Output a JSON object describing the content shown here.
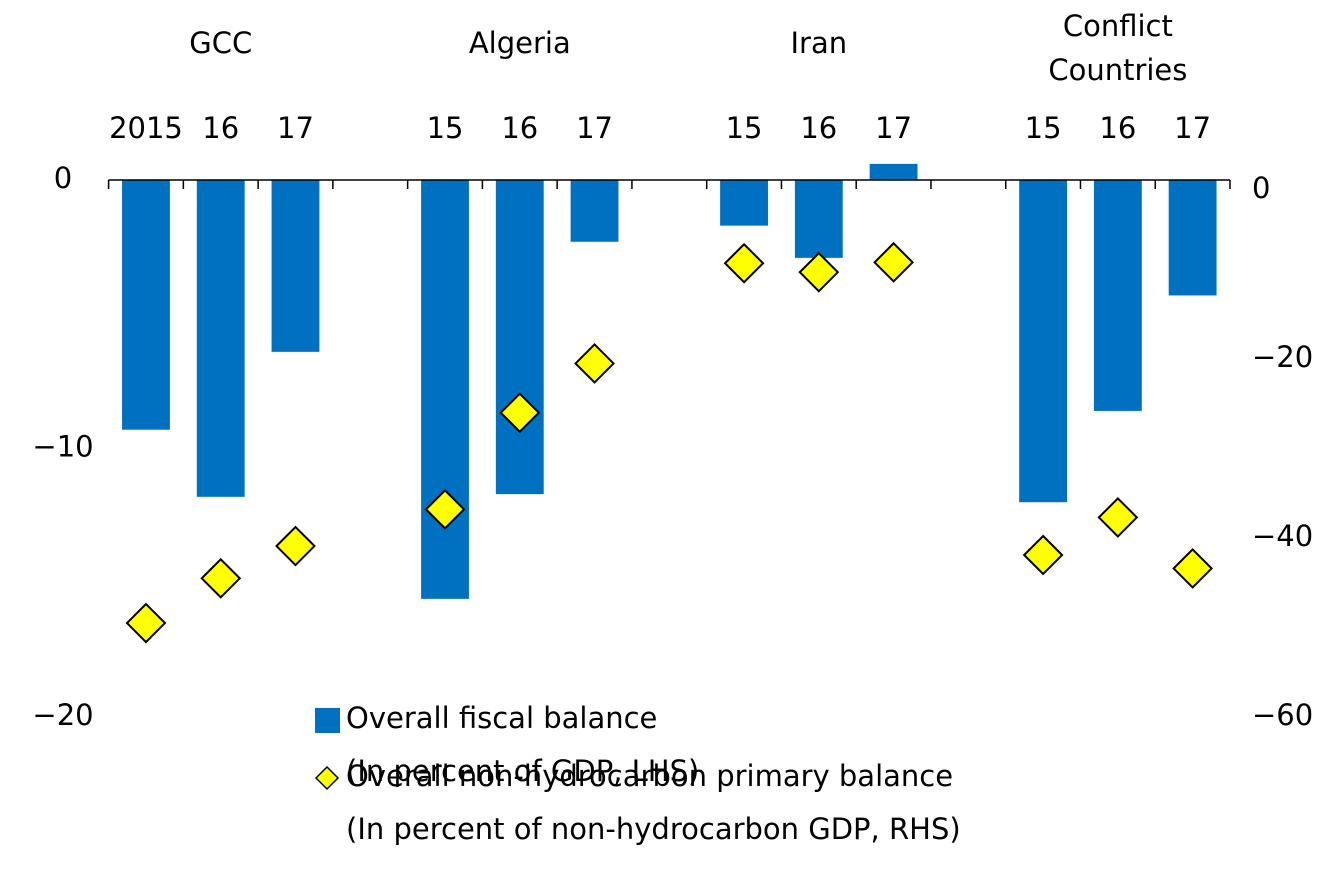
{
  "chart_data": {
    "type": "bar_scatter",
    "groups": [
      [
        "GCC"
      ],
      [
        "Algeria"
      ],
      [
        "Iran"
      ],
      [
        "Conflict",
        "Countries"
      ]
    ],
    "categories": [
      "2015",
      "16",
      "17",
      null,
      "15",
      "16",
      "17",
      null,
      "15",
      "16",
      "17",
      null,
      "15",
      "16",
      "17"
    ],
    "series": [
      {
        "name": "Overall fiscal balance",
        "note": "(In percent of GDP, LHS)",
        "color": "#0070c0",
        "kind": "bar",
        "axis": "y",
        "values": [
          -9.3,
          -11.8,
          -6.4,
          null,
          -15.6,
          -11.7,
          -2.3,
          null,
          -1.7,
          -2.9,
          0.6,
          null,
          -12.0,
          -8.6,
          -4.3
        ]
      },
      {
        "name": "Overall non-hydrocarbon primary balance",
        "note": "(In percent of non-hydrocarbon GDP, RHS)",
        "color": "#ffff00",
        "kind": "diamond",
        "axis": "y2",
        "values": [
          -49.5,
          -44.5,
          -40.9,
          null,
          -36.8,
          -26.0,
          -20.5,
          null,
          -9.3,
          -10.3,
          -9.2,
          null,
          -41.9,
          -37.7,
          -43.4
        ]
      }
    ],
    "ylim": [
      -20,
      0
    ],
    "yticks": [
      {
        "value": 0,
        "label": "0"
      },
      {
        "value": -10,
        "label": "−10"
      },
      {
        "value": -20,
        "label": "−20"
      }
    ],
    "y2lim": [
      -60,
      0
    ],
    "y2ticks": [
      {
        "value": 0,
        "label": "0"
      },
      {
        "value": -20,
        "label": "−20"
      },
      {
        "value": -40,
        "label": "−40"
      },
      {
        "value": -60,
        "label": "−60"
      }
    ],
    "grid": false
  }
}
